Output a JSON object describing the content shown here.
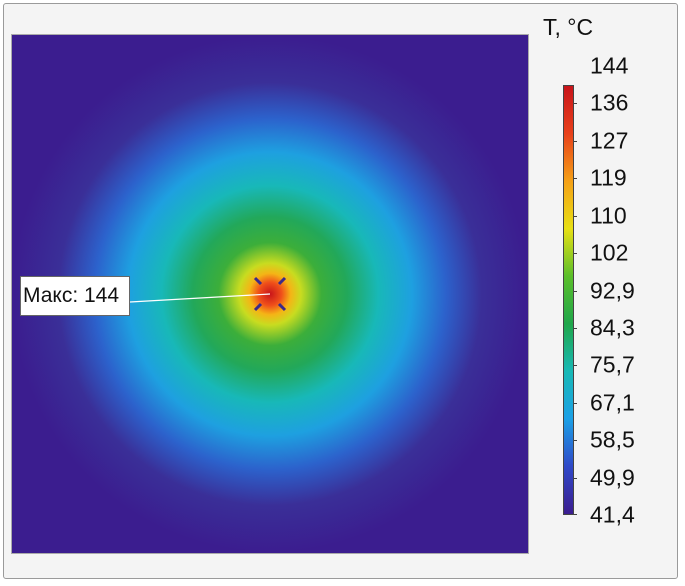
{
  "chart_data": {
    "type": "heatmap",
    "description_shape": "radial",
    "colorbar": {
      "unit_label": "T, °C",
      "ticks": [
        "144",
        "136",
        "127",
        "119",
        "110",
        "102",
        "92,9",
        "84,3",
        "75,7",
        "67,1",
        "58,5",
        "49,9",
        "41,4"
      ],
      "min": 41.4,
      "max": 144,
      "colors": [
        "#3b1d8f",
        "#2f49c8",
        "#1ba0e6",
        "#18b9b6",
        "#1fa64a",
        "#5bbf2a",
        "#e8e014",
        "#f5a016",
        "#e8401a",
        "#c8141a"
      ]
    },
    "field": {
      "max_value": 144,
      "min_value": 41.4,
      "hotspot_center": [
        0.5,
        0.5
      ]
    },
    "annotation": {
      "label": "Макс: 144"
    }
  }
}
